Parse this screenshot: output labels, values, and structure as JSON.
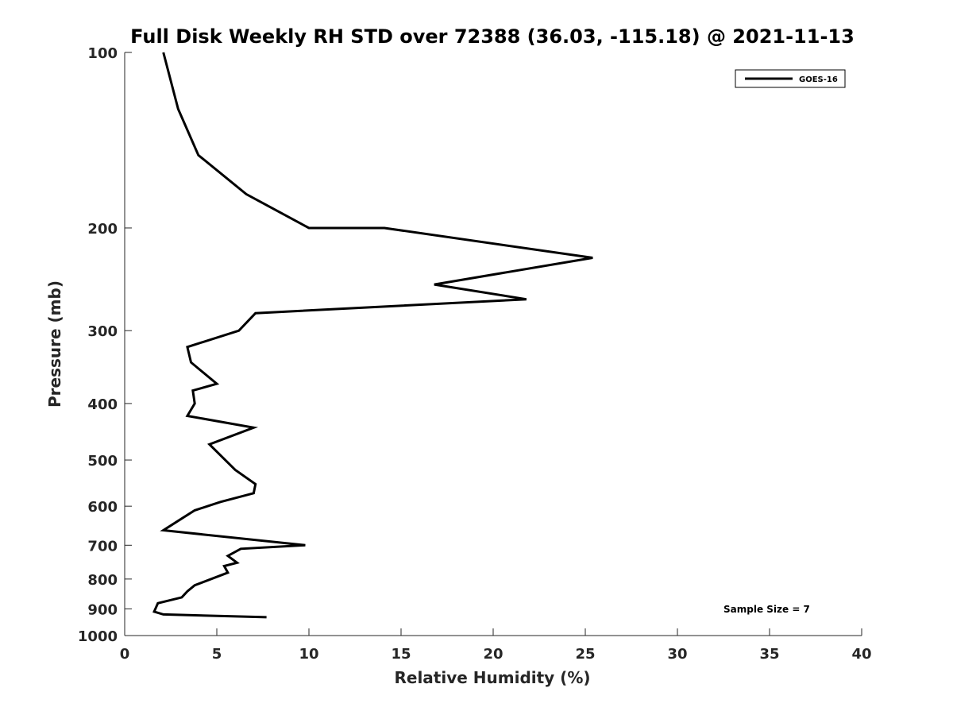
{
  "chart_data": {
    "type": "line",
    "title": "Full Disk Weekly RH STD over 72388 (36.03, -115.18) @ 2021-11-13",
    "xlabel": "Relative Humidity (%)",
    "ylabel": "Pressure (mb)",
    "xlim": [
      0,
      40
    ],
    "ylim": [
      100,
      1000
    ],
    "y_scale": "log",
    "y_reversed": true,
    "grid": false,
    "legend_position": "top-right",
    "xticks": [
      "0",
      "5",
      "10",
      "15",
      "20",
      "25",
      "30",
      "35",
      "40"
    ],
    "yticks": [
      "100",
      "200",
      "300",
      "400",
      "500",
      "600",
      "700",
      "800",
      "900",
      "1000"
    ],
    "annotation": "Sample Size = 7",
    "series": [
      {
        "name": "GOES-16",
        "color": "#000000",
        "points": [
          [
            2.1,
            100
          ],
          [
            2.9,
            125
          ],
          [
            4.0,
            150
          ],
          [
            6.6,
            175
          ],
          [
            10.0,
            200
          ],
          [
            14.1,
            200
          ],
          [
            25.4,
            225
          ],
          [
            16.8,
            250
          ],
          [
            21.8,
            265
          ],
          [
            7.1,
            280
          ],
          [
            6.2,
            300
          ],
          [
            3.4,
            320
          ],
          [
            3.6,
            340
          ],
          [
            5.0,
            370
          ],
          [
            3.7,
            380
          ],
          [
            3.8,
            400
          ],
          [
            3.4,
            420
          ],
          [
            7.0,
            440
          ],
          [
            4.6,
            470
          ],
          [
            6.0,
            520
          ],
          [
            7.1,
            550
          ],
          [
            7.0,
            570
          ],
          [
            5.2,
            590
          ],
          [
            3.8,
            610
          ],
          [
            3.1,
            630
          ],
          [
            2.1,
            660
          ],
          [
            9.8,
            700
          ],
          [
            6.3,
            710
          ],
          [
            5.6,
            730
          ],
          [
            6.1,
            750
          ],
          [
            5.4,
            760
          ],
          [
            5.6,
            780
          ],
          [
            3.8,
            820
          ],
          [
            3.4,
            840
          ],
          [
            3.1,
            860
          ],
          [
            1.8,
            880
          ],
          [
            1.6,
            910
          ],
          [
            2.1,
            920
          ],
          [
            7.7,
            930
          ]
        ]
      }
    ]
  }
}
